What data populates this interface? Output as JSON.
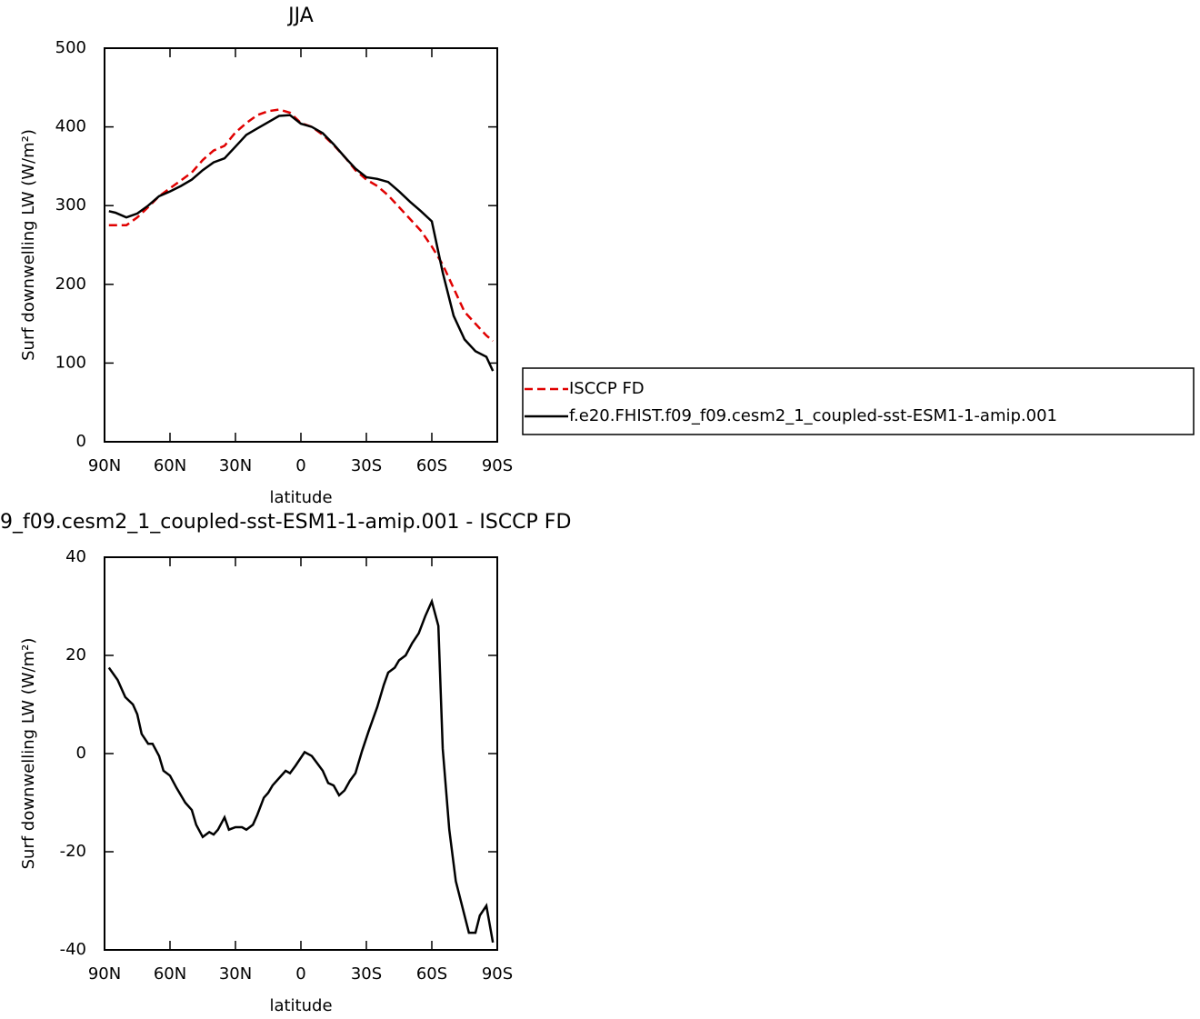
{
  "chart_data": [
    {
      "type": "line",
      "title": "JJA",
      "x_label": "latitude",
      "y_label": "Surf downwelling LW (W/m²)",
      "x": [
        88,
        85,
        80,
        75,
        70,
        65,
        60,
        55,
        50,
        45,
        40,
        35,
        30,
        25,
        20,
        15,
        10,
        5,
        0,
        -5,
        -10,
        -15,
        -20,
        -25,
        -30,
        -35,
        -40,
        -45,
        -50,
        -55,
        -60,
        -65,
        -70,
        -75,
        -80,
        -85,
        -88
      ],
      "series": [
        {
          "name": "ISCCP FD",
          "color": "#e00000",
          "dashed": true,
          "values": [
            275,
            275,
            275,
            285,
            298,
            312,
            322,
            332,
            342,
            358,
            370,
            376,
            393,
            405,
            415,
            420,
            422,
            418,
            405,
            400,
            390,
            377,
            362,
            345,
            333,
            325,
            313,
            298,
            283,
            268,
            248,
            225,
            195,
            165,
            150,
            135,
            128
          ]
        },
        {
          "name": "f.e20.FHIST.f09_f09.cesm2_1_coupled-sst-ESM1-1-amip.001",
          "color": "#000000",
          "dashed": false,
          "values": [
            293,
            291,
            285,
            290,
            300,
            312,
            318,
            325,
            333,
            345,
            355,
            360,
            375,
            390,
            398,
            406,
            414,
            415,
            404,
            400,
            392,
            378,
            362,
            347,
            336,
            334,
            330,
            318,
            305,
            293,
            280,
            215,
            160,
            130,
            115,
            108,
            90
          ]
        }
      ],
      "xlim": [
        90,
        -90
      ],
      "xticks": [
        {
          "value": 90,
          "label": "90N"
        },
        {
          "value": 60,
          "label": "60N"
        },
        {
          "value": 30,
          "label": "30N"
        },
        0,
        {
          "value": -30,
          "label": "30S"
        },
        {
          "value": -60,
          "label": "60S"
        },
        {
          "value": -90,
          "label": "90S"
        }
      ],
      "ylim": [
        0,
        500
      ],
      "yticks": [
        0,
        100,
        200,
        300,
        400,
        500
      ],
      "legend": "right"
    },
    {
      "type": "line",
      "title": "9_f09.cesm2_1_coupled-sst-ESM1-1-amip.001 - ISCCP FD",
      "x_label": "latitude",
      "y_label": "Surf downwelling LW (W/m²)",
      "x": [
        88,
        84,
        80.5,
        77,
        75,
        73,
        70,
        68,
        65,
        63,
        60,
        57,
        53,
        50,
        48,
        45,
        42,
        40,
        38,
        35,
        33,
        30,
        27,
        25,
        22,
        20,
        17,
        15,
        13,
        10,
        7,
        5,
        2.5,
        -1.7,
        -5,
        -7.5,
        -10,
        -12.5,
        -15,
        -17.5,
        -20,
        -22.5,
        -25,
        -28,
        -31,
        -35,
        -38,
        -40,
        -43,
        -45,
        -48,
        -51,
        -54,
        -57,
        -60,
        -63,
        -65,
        -68,
        -71,
        -75,
        -77,
        -80,
        -82,
        -85,
        -88
      ],
      "series": [
        {
          "color": "#000000",
          "dashed": false,
          "values": [
            17.5,
            15,
            11.5,
            10,
            8,
            4,
            2,
            2,
            -0.5,
            -3.5,
            -4.5,
            -7,
            -10,
            -11.5,
            -14.5,
            -17,
            -16,
            -16.5,
            -15.5,
            -13,
            -15.5,
            -15,
            -15,
            -15.5,
            -14.5,
            -12.5,
            -9,
            -8,
            -6.5,
            -5,
            -3.5,
            -4,
            -2.5,
            0.3,
            -0.5,
            -2,
            -3.5,
            -6,
            -6.5,
            -8.5,
            -7.5,
            -5.5,
            -4,
            0.5,
            4.5,
            9.5,
            14,
            16.5,
            17.5,
            19,
            20,
            22.5,
            24.5,
            28,
            31,
            26,
            1,
            -15.5,
            -26,
            -33,
            -36.5,
            -36.5,
            -33,
            -31,
            -38.5
          ]
        }
      ],
      "xlim": [
        90,
        -90
      ],
      "xticks": [
        {
          "value": 90,
          "label": "90N"
        },
        {
          "value": 60,
          "label": "60N"
        },
        {
          "value": 30,
          "label": "30N"
        },
        0,
        {
          "value": -30,
          "label": "30S"
        },
        {
          "value": -60,
          "label": "60S"
        },
        {
          "value": -90,
          "label": "90S"
        }
      ],
      "ylim": [
        -40,
        40
      ],
      "yticks": [
        -40,
        -20,
        0,
        20,
        40
      ]
    }
  ]
}
